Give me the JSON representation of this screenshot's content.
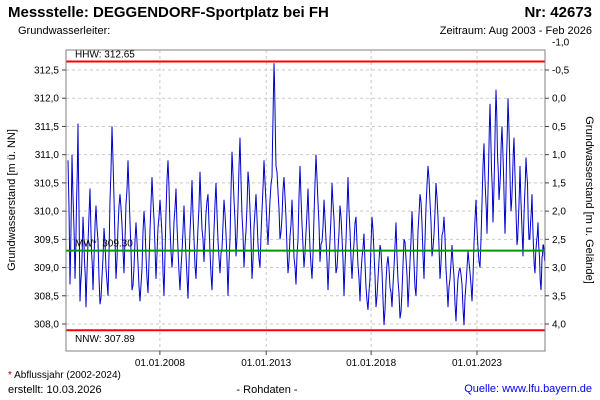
{
  "header": {
    "title": "Messstelle: DEGGENDORF-Sportplatz bei FH",
    "station_number": "Nr: 42673",
    "aquifer_label": "Grundwasserleiter:",
    "period_label": "Zeitraum: Aug 2003 - Feb 2026"
  },
  "footer": {
    "footnote_star": "*",
    "footnote_text": " Abflussjahr (2002-2024)",
    "created_label": "erstellt:  10.03.2026",
    "center_label": "- Rohdaten -",
    "source_label": "Quelle: www.lfu.bayern.de"
  },
  "chart_data": {
    "type": "line",
    "title": "",
    "xlabel": "",
    "ylabel_left": "Grundwasserstand [m ü. NN]",
    "ylabel_right": "Grundwasserstand [m u. Gelände]",
    "x_range": [
      "Aug 2003",
      "Feb 2026"
    ],
    "ylim_left": [
      307.52,
      312.85
    ],
    "ground_elevation": 312.0,
    "grid": true,
    "colors": {
      "series": "#0000cc",
      "extreme_line": "#ff0000",
      "mean_line": "#009900",
      "gridline": "#c9c9c9",
      "frame": "#808080"
    },
    "y_axis_left": {
      "ticks": [
        312.5,
        312.0,
        311.5,
        311.0,
        310.5,
        310.0,
        309.5,
        309.0,
        308.5,
        308.0
      ]
    },
    "y_axis_right": {
      "ticks": [
        -1.0,
        -0.5,
        0.0,
        0.5,
        1.0,
        1.5,
        2.0,
        2.5,
        3.0,
        3.5,
        4.0
      ]
    },
    "x_axis": {
      "ticks": [
        {
          "label": "01.01.2008",
          "f": 0.196
        },
        {
          "label": "01.01.2013",
          "f": 0.418
        },
        {
          "label": "01.01.2018",
          "f": 0.637
        },
        {
          "label": "01.01.2023",
          "f": 0.858
        }
      ]
    },
    "reference_lines": [
      {
        "name": "HHW",
        "label": "HHW: 312.65",
        "value": 312.65,
        "color": "#ff0000",
        "label_position": "above"
      },
      {
        "name": "MW",
        "label": "MW*: 309.30",
        "value": 309.3,
        "color": "#009900",
        "label_position": "above"
      },
      {
        "name": "NNW",
        "label": "NNW: 307.89",
        "value": 307.89,
        "color": "#ff0000",
        "label_position": "below"
      }
    ],
    "series": {
      "name": "Grundwasserstand Rohdaten",
      "color": "#0000cc",
      "points": [
        [
          0.0042,
          310.9
        ],
        [
          0.0084,
          308.7
        ],
        [
          0.0125,
          311.0
        ],
        [
          0.0188,
          308.8
        ],
        [
          0.0251,
          311.55
        ],
        [
          0.0292,
          308.4
        ],
        [
          0.0355,
          309.9
        ],
        [
          0.0418,
          308.3
        ],
        [
          0.0501,
          310.4
        ],
        [
          0.0564,
          308.6
        ],
        [
          0.0626,
          310.1
        ],
        [
          0.071,
          308.35
        ],
        [
          0.0793,
          309.7
        ],
        [
          0.0877,
          308.5
        ],
        [
          0.096,
          311.5
        ],
        [
          0.1044,
          308.8
        ],
        [
          0.1127,
          310.3
        ],
        [
          0.1211,
          308.9
        ],
        [
          0.1294,
          310.9
        ],
        [
          0.1378,
          308.6
        ],
        [
          0.1461,
          309.8
        ],
        [
          0.1545,
          308.4
        ],
        [
          0.1628,
          310.0
        ],
        [
          0.1712,
          308.55
        ],
        [
          0.1795,
          310.6
        ],
        [
          0.1879,
          308.8
        ],
        [
          0.1962,
          310.2
        ],
        [
          0.2046,
          308.5
        ],
        [
          0.2129,
          310.9
        ],
        [
          0.2213,
          309.0
        ],
        [
          0.2296,
          310.4
        ],
        [
          0.238,
          308.6
        ],
        [
          0.2463,
          310.1
        ],
        [
          0.2547,
          308.45
        ],
        [
          0.263,
          310.55
        ],
        [
          0.2714,
          308.8
        ],
        [
          0.2797,
          310.7
        ],
        [
          0.2881,
          309.1
        ],
        [
          0.2964,
          310.3
        ],
        [
          0.3048,
          308.6
        ],
        [
          0.3132,
          310.5
        ],
        [
          0.3215,
          308.9
        ],
        [
          0.3299,
          310.2
        ],
        [
          0.3382,
          308.5
        ],
        [
          0.3466,
          311.05
        ],
        [
          0.3549,
          309.2
        ],
        [
          0.3633,
          311.3
        ],
        [
          0.3716,
          309.0
        ],
        [
          0.38,
          310.7
        ],
        [
          0.3883,
          308.8
        ],
        [
          0.3967,
          310.3
        ],
        [
          0.405,
          309.0
        ],
        [
          0.4134,
          310.9
        ],
        [
          0.4217,
          309.4
        ],
        [
          0.4301,
          310.6
        ],
        [
          0.4342,
          312.62
        ],
        [
          0.4384,
          310.8
        ],
        [
          0.4467,
          309.5
        ],
        [
          0.4551,
          310.6
        ],
        [
          0.4634,
          308.9
        ],
        [
          0.4718,
          310.2
        ],
        [
          0.4801,
          308.7
        ],
        [
          0.4885,
          310.8
        ],
        [
          0.4968,
          309.0
        ],
        [
          0.5052,
          310.4
        ],
        [
          0.5136,
          308.8
        ],
        [
          0.5219,
          311.0
        ],
        [
          0.5303,
          309.1
        ],
        [
          0.5386,
          310.2
        ],
        [
          0.547,
          308.6
        ],
        [
          0.5553,
          310.5
        ],
        [
          0.5637,
          308.9
        ],
        [
          0.572,
          310.1
        ],
        [
          0.5804,
          308.5
        ],
        [
          0.5887,
          310.6
        ],
        [
          0.5971,
          308.8
        ],
        [
          0.6054,
          309.9
        ],
        [
          0.6138,
          308.4
        ],
        [
          0.6221,
          309.6
        ],
        [
          0.6305,
          308.25
        ],
        [
          0.6388,
          309.9
        ],
        [
          0.6472,
          308.3
        ],
        [
          0.6555,
          309.4
        ],
        [
          0.6639,
          307.98
        ],
        [
          0.6722,
          309.2
        ],
        [
          0.6806,
          308.3
        ],
        [
          0.6889,
          309.8
        ],
        [
          0.6973,
          308.1
        ],
        [
          0.7056,
          309.5
        ],
        [
          0.714,
          308.3
        ],
        [
          0.7223,
          310.0
        ],
        [
          0.7307,
          308.5
        ],
        [
          0.7391,
          310.3
        ],
        [
          0.7474,
          308.8
        ],
        [
          0.7558,
          310.8
        ],
        [
          0.7641,
          309.2
        ],
        [
          0.7725,
          310.5
        ],
        [
          0.7808,
          308.8
        ],
        [
          0.7892,
          309.9
        ],
        [
          0.7975,
          308.3
        ],
        [
          0.8059,
          309.4
        ],
        [
          0.8142,
          308.05
        ],
        [
          0.8226,
          309.0
        ],
        [
          0.8309,
          307.98
        ],
        [
          0.8393,
          309.3
        ],
        [
          0.8476,
          308.4
        ],
        [
          0.856,
          310.2
        ],
        [
          0.8643,
          309.0
        ],
        [
          0.8727,
          311.2
        ],
        [
          0.8789,
          309.6
        ],
        [
          0.8852,
          311.9
        ],
        [
          0.8915,
          309.8
        ],
        [
          0.8977,
          312.15
        ],
        [
          0.904,
          310.2
        ],
        [
          0.9102,
          311.5
        ],
        [
          0.9165,
          309.6
        ],
        [
          0.9228,
          312.0
        ],
        [
          0.929,
          310.0
        ],
        [
          0.9353,
          311.3
        ],
        [
          0.9415,
          309.4
        ],
        [
          0.9478,
          310.8
        ],
        [
          0.9541,
          309.2
        ],
        [
          0.9603,
          310.95
        ],
        [
          0.9666,
          309.5
        ],
        [
          0.9729,
          310.3
        ],
        [
          0.9791,
          308.9
        ],
        [
          0.9854,
          309.8
        ],
        [
          0.9916,
          308.6
        ],
        [
          0.9958,
          309.4
        ],
        [
          1.0,
          309.1
        ]
      ]
    },
    "noise": {
      "seed": 77771,
      "amp1": 0.28,
      "amp2": 0.14,
      "min": 307.95,
      "max": 312.62
    }
  }
}
